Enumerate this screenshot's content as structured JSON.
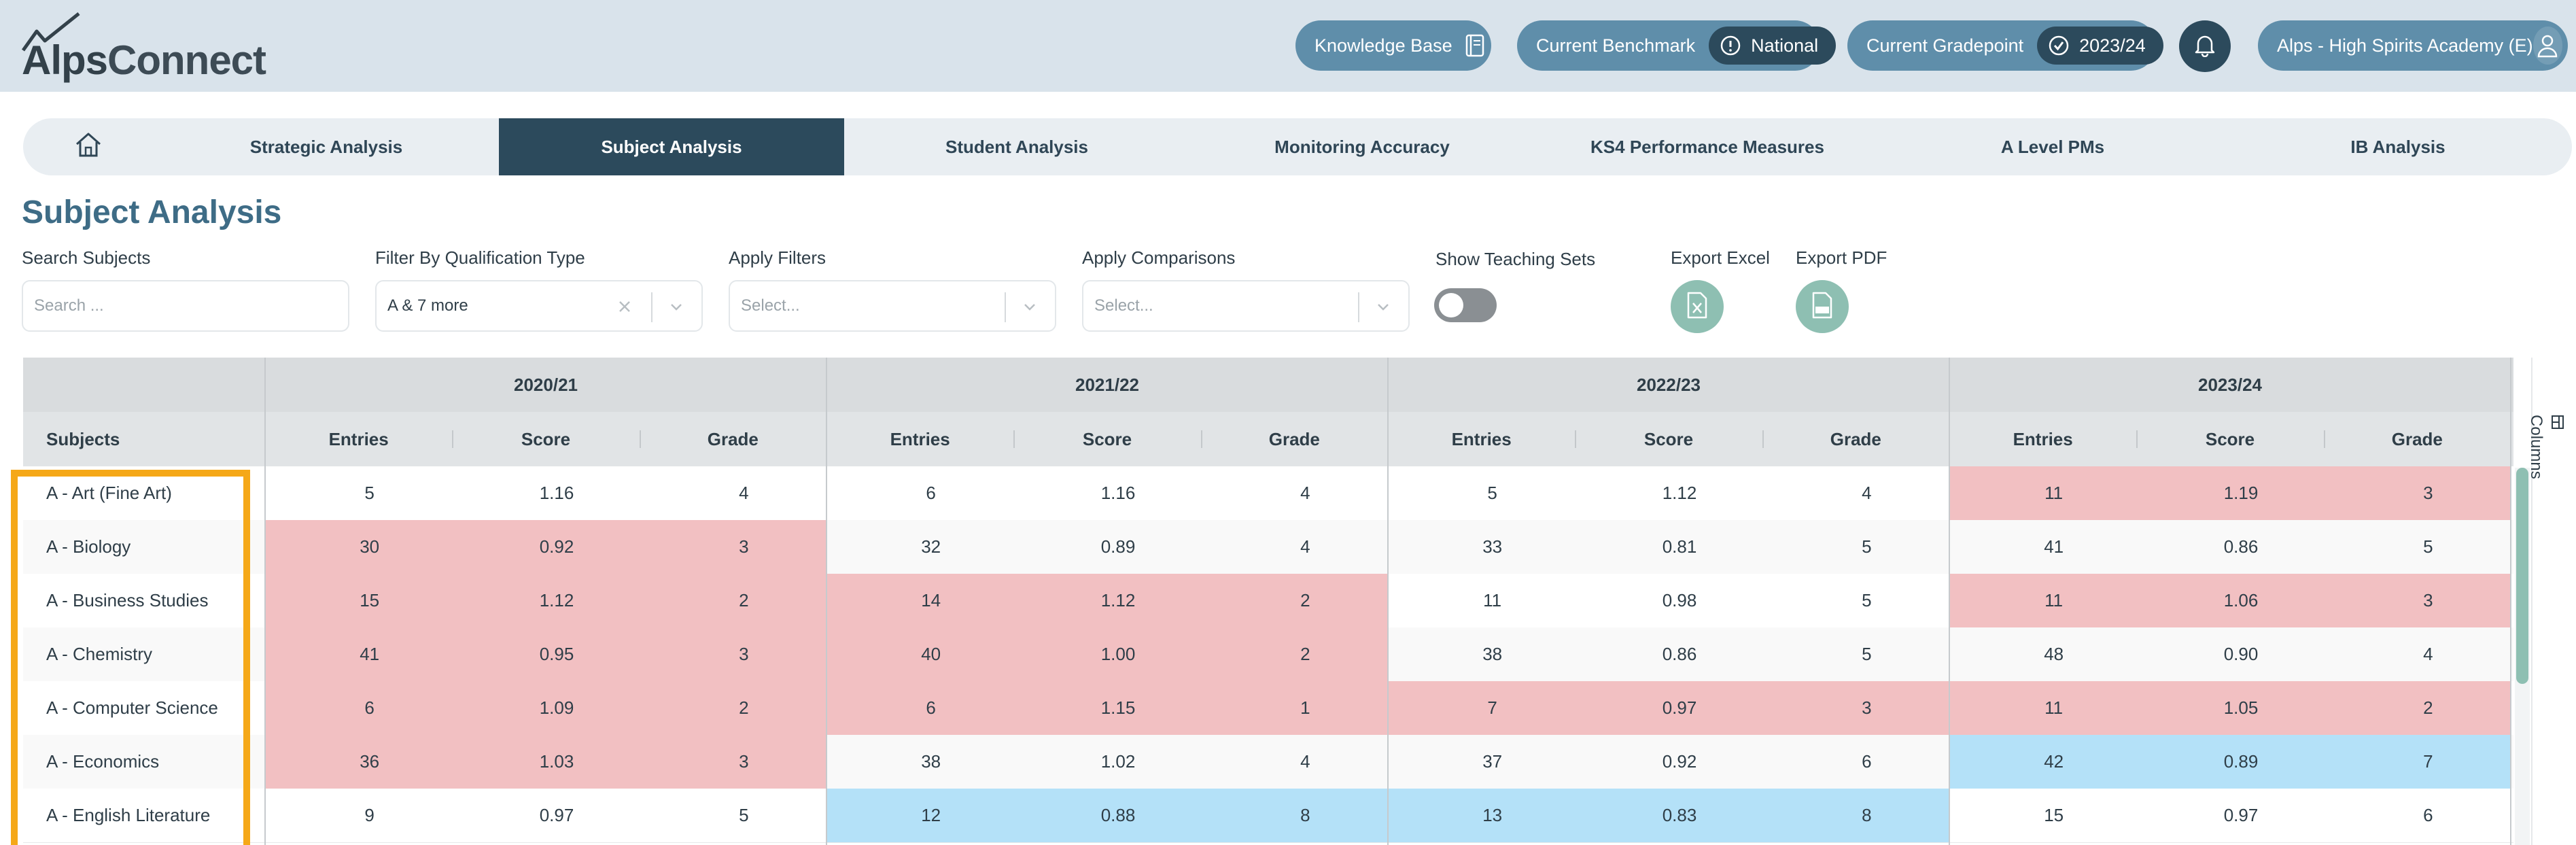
{
  "brand": {
    "name_bold": "Alps",
    "name_light": "Connect"
  },
  "header": {
    "knowledge_base": "Knowledge Base",
    "benchmark_label": "Current Benchmark",
    "benchmark_value": "National",
    "gradepoint_label": "Current Gradepoint",
    "gradepoint_value": "2023/24",
    "account": "Alps - High Spirits Academy (E)"
  },
  "nav": {
    "tabs": [
      {
        "label": "Strategic Analysis"
      },
      {
        "label": "Subject Analysis",
        "active": true
      },
      {
        "label": "Student Analysis"
      },
      {
        "label": "Monitoring Accuracy"
      },
      {
        "label": "KS4 Performance Measures"
      },
      {
        "label": "A Level PMs"
      },
      {
        "label": "IB Analysis"
      }
    ]
  },
  "page": {
    "title": "Subject Analysis"
  },
  "filters": {
    "search_label": "Search Subjects",
    "search_placeholder": "Search ...",
    "qual_label": "Filter By Qualification Type",
    "qual_value": "A & 7 more",
    "apply_filters_label": "Apply Filters",
    "apply_filters_placeholder": "Select...",
    "apply_comparisons_label": "Apply Comparisons",
    "apply_comparisons_placeholder": "Select...",
    "teaching_sets_label": "Show Teaching Sets",
    "teaching_sets_on": false,
    "export_excel_label": "Export Excel",
    "export_pdf_label": "Export PDF"
  },
  "table": {
    "subjects_header": "Subjects",
    "years": [
      "2020/21",
      "2021/22",
      "2022/23",
      "2023/24"
    ],
    "columns": [
      "Entries",
      "Score",
      "Grade"
    ],
    "columns_panel_label": "Columns",
    "colors": {
      "red": "#f2c0c2",
      "blue": "#b4e1f8",
      "white": "#ffffff",
      "alt": "#f9f9f9"
    },
    "rows": [
      {
        "subject": "A - Art (Fine Art)",
        "cells": [
          {
            "entries": "5",
            "score": "1.16",
            "grade": "4",
            "color": "white"
          },
          {
            "entries": "6",
            "score": "1.16",
            "grade": "4",
            "color": "white"
          },
          {
            "entries": "5",
            "score": "1.12",
            "grade": "4",
            "color": "white"
          },
          {
            "entries": "11",
            "score": "1.19",
            "grade": "3",
            "color": "red"
          }
        ]
      },
      {
        "subject": "A - Biology",
        "cells": [
          {
            "entries": "30",
            "score": "0.92",
            "grade": "3",
            "color": "red"
          },
          {
            "entries": "32",
            "score": "0.89",
            "grade": "4",
            "color": "alt"
          },
          {
            "entries": "33",
            "score": "0.81",
            "grade": "5",
            "color": "alt"
          },
          {
            "entries": "41",
            "score": "0.86",
            "grade": "5",
            "color": "alt"
          }
        ]
      },
      {
        "subject": "A - Business Studies",
        "cells": [
          {
            "entries": "15",
            "score": "1.12",
            "grade": "2",
            "color": "red"
          },
          {
            "entries": "14",
            "score": "1.12",
            "grade": "2",
            "color": "red"
          },
          {
            "entries": "11",
            "score": "0.98",
            "grade": "5",
            "color": "white"
          },
          {
            "entries": "11",
            "score": "1.06",
            "grade": "3",
            "color": "red"
          }
        ]
      },
      {
        "subject": "A - Chemistry",
        "cells": [
          {
            "entries": "41",
            "score": "0.95",
            "grade": "3",
            "color": "red"
          },
          {
            "entries": "40",
            "score": "1.00",
            "grade": "2",
            "color": "red"
          },
          {
            "entries": "38",
            "score": "0.86",
            "grade": "5",
            "color": "alt"
          },
          {
            "entries": "48",
            "score": "0.90",
            "grade": "4",
            "color": "alt"
          }
        ]
      },
      {
        "subject": "A - Computer Science",
        "cells": [
          {
            "entries": "6",
            "score": "1.09",
            "grade": "2",
            "color": "red"
          },
          {
            "entries": "6",
            "score": "1.15",
            "grade": "1",
            "color": "red"
          },
          {
            "entries": "7",
            "score": "0.97",
            "grade": "3",
            "color": "red"
          },
          {
            "entries": "11",
            "score": "1.05",
            "grade": "2",
            "color": "red"
          }
        ]
      },
      {
        "subject": "A - Economics",
        "cells": [
          {
            "entries": "36",
            "score": "1.03",
            "grade": "3",
            "color": "red"
          },
          {
            "entries": "38",
            "score": "1.02",
            "grade": "4",
            "color": "alt"
          },
          {
            "entries": "37",
            "score": "0.92",
            "grade": "6",
            "color": "alt"
          },
          {
            "entries": "42",
            "score": "0.89",
            "grade": "7",
            "color": "blue"
          }
        ]
      },
      {
        "subject": "A - English Literature",
        "cells": [
          {
            "entries": "9",
            "score": "0.97",
            "grade": "5",
            "color": "white"
          },
          {
            "entries": "12",
            "score": "0.88",
            "grade": "8",
            "color": "blue"
          },
          {
            "entries": "13",
            "score": "0.83",
            "grade": "8",
            "color": "blue"
          },
          {
            "entries": "15",
            "score": "0.97",
            "grade": "6",
            "color": "white"
          }
        ]
      }
    ]
  }
}
